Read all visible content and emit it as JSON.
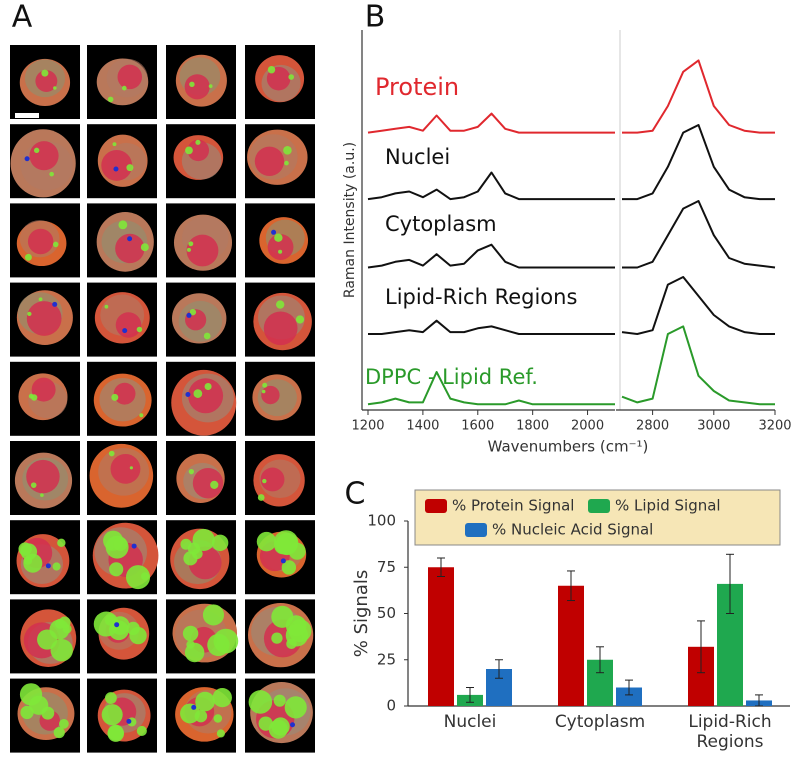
{
  "panel_labels": [
    "A",
    "B",
    "C"
  ],
  "chart_data": [
    {
      "type": "line",
      "y_label": "Raman Intensity (a.u.)",
      "x_label": "Wavenumbers (cm⁻¹)",
      "x": [
        1200,
        1250,
        1300,
        1350,
        1400,
        1450,
        1500,
        1550,
        1600,
        1650,
        1700,
        1750,
        1800,
        1850,
        1900,
        1950,
        2000,
        2050,
        2100
      ],
      "xlim": [
        1200,
        2100
      ],
      "xticks": [
        1200,
        1400,
        1600,
        1800,
        2000
      ],
      "ylim": [
        0,
        10
      ],
      "series": [
        {
          "name": "Protein",
          "color": "#e0282e",
          "values": [
            7.3,
            7.35,
            7.4,
            7.45,
            7.35,
            7.75,
            7.35,
            7.35,
            7.45,
            7.8,
            7.4,
            7.3,
            7.3,
            7.3,
            7.3,
            7.3,
            7.3,
            7.3,
            7.3
          ]
        },
        {
          "name": "Nuclei",
          "color": "#111111",
          "values": [
            5.55,
            5.6,
            5.7,
            5.75,
            5.6,
            5.8,
            5.55,
            5.6,
            5.75,
            6.25,
            5.7,
            5.55,
            5.55,
            5.55,
            5.55,
            5.55,
            5.55,
            5.55,
            5.55
          ]
        },
        {
          "name": "Cytoplasm",
          "color": "#111111",
          "values": [
            3.75,
            3.8,
            3.9,
            3.95,
            3.8,
            4.1,
            3.8,
            3.85,
            4.2,
            4.35,
            3.9,
            3.75,
            3.75,
            3.75,
            3.75,
            3.75,
            3.75,
            3.75,
            3.75
          ]
        },
        {
          "name": "Lipid-Rich Regions",
          "color": "#111111",
          "values": [
            2.0,
            2.0,
            2.05,
            2.1,
            2.05,
            2.35,
            2.05,
            2.05,
            2.15,
            2.2,
            2.1,
            2.0,
            2.0,
            2.0,
            2.0,
            2.0,
            2.0,
            2.0,
            2.0
          ]
        },
        {
          "name": "DPPC - Lipid Ref.",
          "color": "#2a9a2a",
          "values": [
            0.15,
            0.2,
            0.3,
            0.2,
            0.2,
            1.0,
            0.3,
            0.2,
            0.15,
            0.15,
            0.15,
            0.25,
            0.15,
            0.15,
            0.15,
            0.15,
            0.15,
            0.15,
            0.15
          ]
        }
      ]
    },
    {
      "type": "line",
      "x": [
        2700,
        2750,
        2800,
        2850,
        2900,
        2950,
        3000,
        3050,
        3100,
        3150,
        3200
      ],
      "xlim": [
        2700,
        3200
      ],
      "xticks": [
        2800,
        3000,
        3200
      ],
      "ylim": [
        0,
        10
      ],
      "series": [
        {
          "color": "#e0282e",
          "values": [
            7.3,
            7.3,
            7.35,
            8.0,
            8.9,
            9.2,
            8.0,
            7.5,
            7.35,
            7.3,
            7.3
          ]
        },
        {
          "color": "#111111",
          "values": [
            5.55,
            5.55,
            5.7,
            6.4,
            7.3,
            7.5,
            6.4,
            5.8,
            5.6,
            5.55,
            5.55
          ]
        },
        {
          "color": "#111111",
          "values": [
            3.75,
            3.75,
            3.9,
            4.6,
            5.3,
            5.5,
            4.6,
            4.0,
            3.85,
            3.8,
            3.75
          ]
        },
        {
          "color": "#111111",
          "values": [
            2.05,
            2.0,
            2.1,
            3.3,
            3.5,
            3.0,
            2.5,
            2.2,
            2.05,
            2.0,
            2.0
          ]
        },
        {
          "color": "#2a9a2a",
          "values": [
            0.35,
            0.2,
            0.3,
            2.0,
            2.2,
            0.9,
            0.5,
            0.25,
            0.2,
            0.15,
            0.15
          ]
        }
      ]
    },
    {
      "type": "bar",
      "y_label": "% Signals",
      "categories": [
        "Nuclei",
        "Cytoplasm",
        "Lipid-Rich Regions"
      ],
      "ylim": [
        0,
        100
      ],
      "yticks": [
        0,
        25,
        50,
        75,
        100
      ],
      "legend": "top",
      "series": [
        {
          "name": "% Protein Signal",
          "color": "#c00000",
          "values": [
            75,
            65,
            32
          ],
          "errors": [
            5,
            8,
            14
          ]
        },
        {
          "name": "% Lipid Signal",
          "color": "#1fa84f",
          "values": [
            6,
            25,
            66
          ],
          "errors": [
            4,
            7,
            16
          ]
        },
        {
          "name": "% Nucleic Acid Signal",
          "color": "#1f6fc0",
          "values": [
            20,
            10,
            3
          ],
          "errors": [
            5,
            4,
            3
          ]
        }
      ]
    }
  ]
}
